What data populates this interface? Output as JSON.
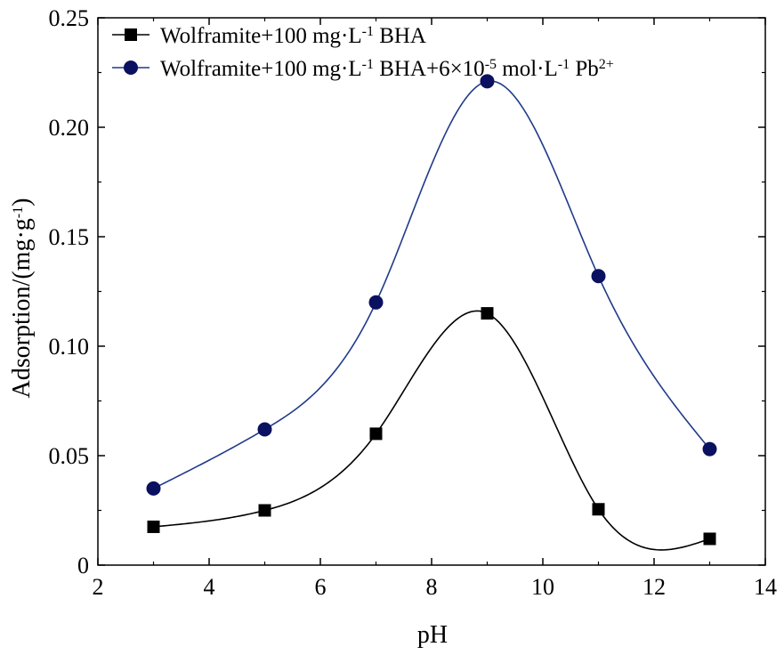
{
  "chart_data": {
    "type": "line",
    "xlabel": "pH",
    "ylabel_main": "Adsorption/(mg·g",
    "ylabel_sup": "-1",
    "ylabel_tail": ")",
    "xlim": [
      2,
      14
    ],
    "ylim": [
      0,
      0.25
    ],
    "x_ticks": [
      "2",
      "4",
      "6",
      "8",
      "10",
      "12",
      "14"
    ],
    "y_ticks": [
      "0",
      "0.05",
      "0.10",
      "0.15",
      "0.20",
      "0.25"
    ],
    "x": [
      3,
      5,
      7,
      9,
      11,
      13
    ],
    "grid": false,
    "legend_position": "top-left",
    "series": [
      {
        "name": "Wolframite+100 mg·L-1 BHA",
        "legend_main": "Wolframite+100 mg·L",
        "legend_sup": "-1",
        "legend_tail": " BHA",
        "marker": "square",
        "color": "#000000",
        "values": [
          0.0175,
          0.025,
          0.06,
          0.115,
          0.0255,
          0.012
        ]
      },
      {
        "name": "Wolframite+100 mg·L-1 BHA+6×10-5 mol·L-1 Pb2+",
        "legend_parts": [
          "Wolframite+100 mg·L",
          "-1",
          " BHA+6×10",
          "-5",
          " mol·L",
          "-1",
          " Pb",
          "2+"
        ],
        "marker": "circle",
        "color": "#0a1160",
        "line_color": "#1f3a8a",
        "values": [
          0.035,
          0.062,
          0.12,
          0.221,
          0.132,
          0.053
        ]
      }
    ]
  }
}
